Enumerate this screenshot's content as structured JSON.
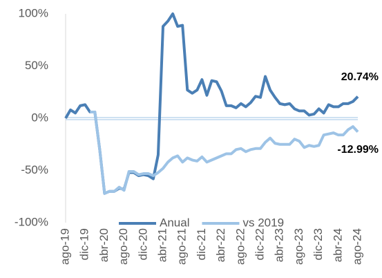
{
  "chart_data": {
    "type": "line",
    "categories": [
      "ago-19",
      null,
      null,
      null,
      "dic-19",
      null,
      null,
      null,
      "abr-20",
      null,
      null,
      null,
      "ago-20",
      null,
      null,
      null,
      "dic-20",
      null,
      null,
      null,
      "abr-21",
      null,
      null,
      null,
      "ago-21",
      null,
      null,
      null,
      "dic-21",
      null,
      null,
      null,
      "abr-22",
      null,
      null,
      null,
      "ago-22",
      null,
      null,
      null,
      "dic-22",
      null,
      null,
      null,
      "abr-23",
      null,
      null,
      null,
      "ago-23",
      null,
      null,
      null,
      "dic-23",
      null,
      null,
      null,
      "abr-24",
      null,
      null,
      null,
      "ago-24"
    ],
    "series": [
      {
        "name": "Anual",
        "color": "#4a7fb5",
        "values": [
          0,
          8,
          5,
          12,
          13,
          6,
          6,
          -30,
          -72,
          -70,
          -70,
          -67,
          -68,
          -52,
          -52,
          -55,
          -54,
          -55,
          -58,
          -35,
          88,
          93,
          100,
          88,
          89,
          27,
          24,
          27,
          37,
          22,
          36,
          35,
          26,
          12,
          12,
          10,
          14,
          11,
          15,
          21,
          20,
          40,
          27,
          20,
          14,
          13,
          14,
          9,
          7,
          7,
          3,
          4,
          9,
          5,
          13,
          11,
          11,
          14,
          14,
          16,
          20.74
        ],
        "value_labels": [
          null,
          null,
          null,
          null,
          null,
          null,
          null,
          null,
          null,
          null,
          null,
          null,
          null,
          null,
          null,
          null,
          null,
          null,
          null,
          null,
          null,
          null,
          null,
          null,
          null,
          null,
          null,
          null,
          null,
          null,
          null,
          null,
          null,
          null,
          null,
          null,
          null,
          null,
          null,
          null,
          null,
          null,
          null,
          null,
          null,
          null,
          null,
          null,
          null,
          null,
          null,
          null,
          null,
          null,
          null,
          null,
          null,
          null,
          null,
          null,
          "20.74%"
        ]
      },
      {
        "name": "vs 2019",
        "color": "#9dc3e6",
        "values": [
          null,
          null,
          null,
          null,
          null,
          6,
          6,
          -30,
          -72,
          -70,
          -70,
          -66,
          -69,
          -51,
          -51,
          -54,
          -53,
          -53,
          -55,
          -52,
          -48,
          -42,
          -38,
          -36,
          -42,
          -38,
          -40,
          -41,
          -37,
          -42,
          -40,
          -38,
          -36,
          -34,
          -34,
          -30,
          -29,
          -32,
          -30,
          -29,
          -29,
          -23,
          -19,
          -24,
          -25,
          -25,
          -25,
          -20,
          -22,
          -28,
          -26,
          -27,
          -26,
          -16,
          -15,
          -14,
          -16,
          -16,
          -11,
          -8,
          -12.99
        ],
        "value_labels": [
          null,
          null,
          null,
          null,
          null,
          null,
          null,
          null,
          null,
          null,
          null,
          null,
          null,
          null,
          null,
          null,
          null,
          null,
          null,
          null,
          null,
          null,
          null,
          null,
          null,
          null,
          null,
          null,
          null,
          null,
          null,
          null,
          null,
          null,
          null,
          null,
          null,
          null,
          null,
          null,
          null,
          null,
          null,
          null,
          null,
          null,
          null,
          null,
          null,
          null,
          null,
          null,
          null,
          null,
          null,
          null,
          null,
          null,
          null,
          null,
          "-12.99%"
        ]
      }
    ],
    "ylim": [
      -100,
      100
    ],
    "yticks": [
      {
        "value": -100,
        "label": "-100%"
      },
      {
        "value": -50,
        "label": "-50%"
      },
      {
        "value": 0,
        "label": "0%"
      },
      {
        "value": 50,
        "label": "50%"
      },
      {
        "value": 100,
        "label": "100%"
      }
    ],
    "legend": "bottom"
  }
}
